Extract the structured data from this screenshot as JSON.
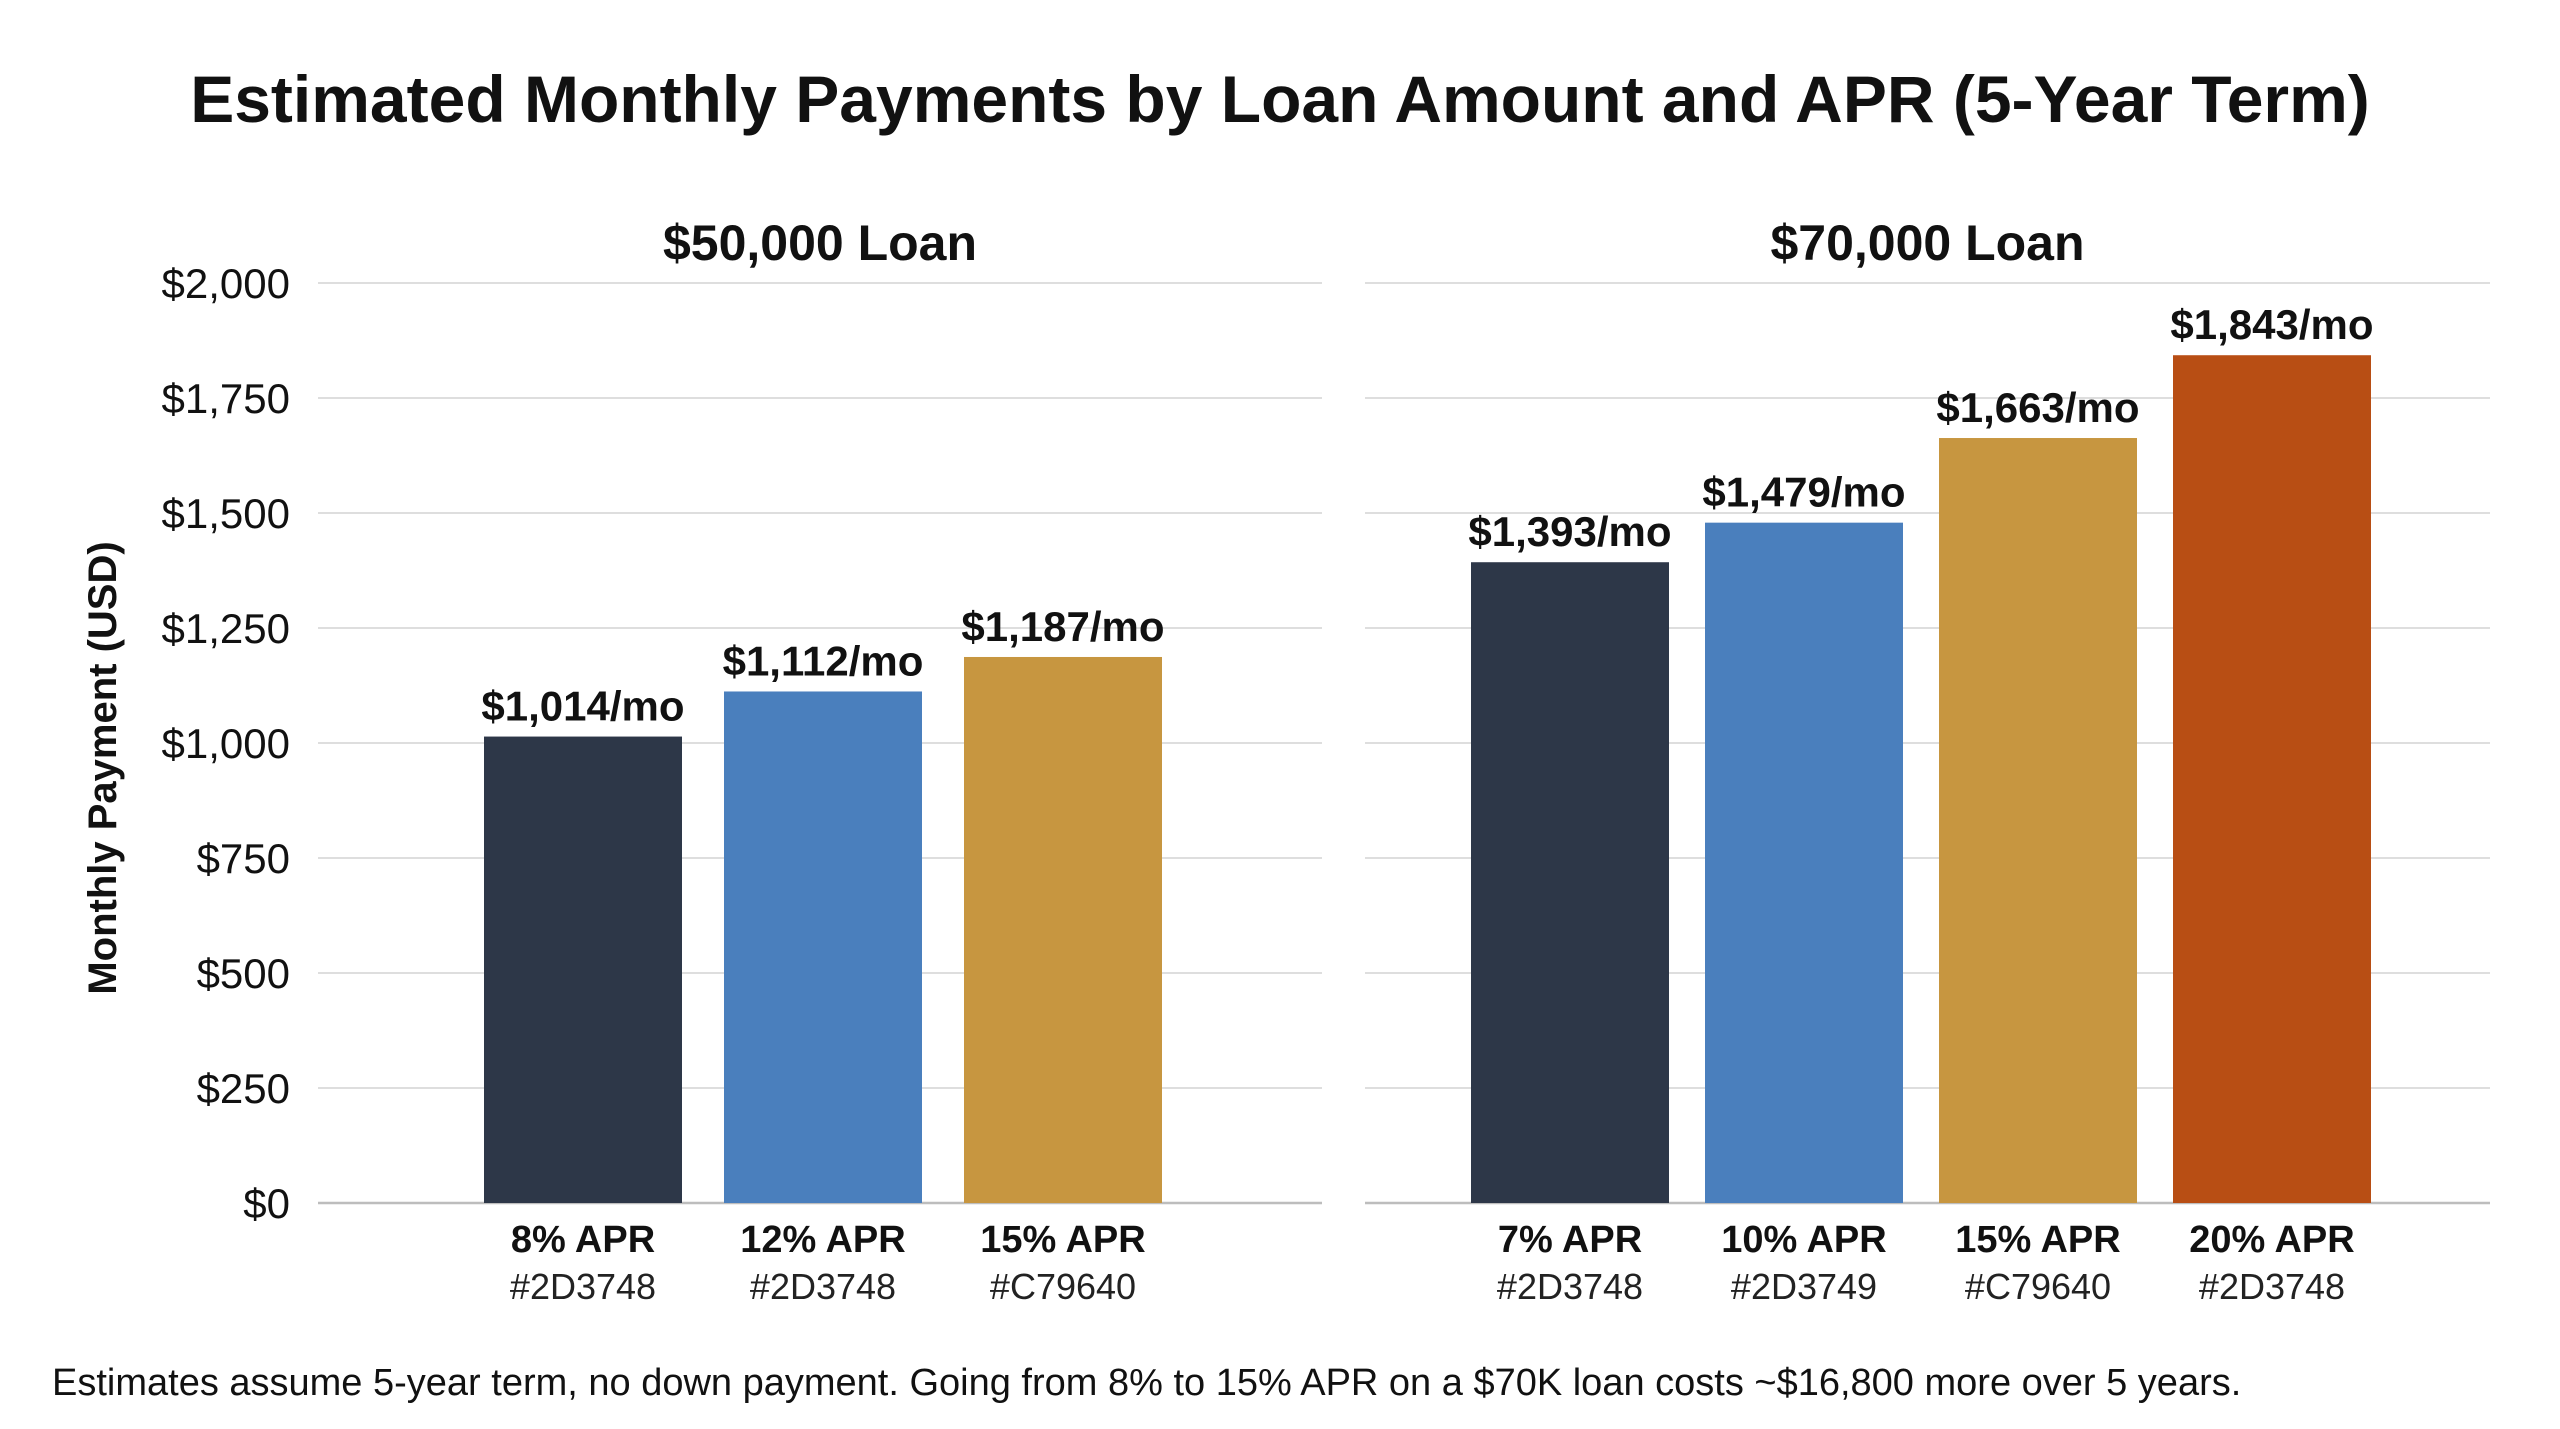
{
  "chart_data": {
    "type": "bar",
    "title": "Estimated Monthly Payments by Loan Amount and APR (5-Year Term)",
    "ylabel": "Monthly Payment (USD)",
    "ylim": [
      0,
      2000
    ],
    "yticks": [
      0,
      250,
      500,
      750,
      1000,
      1250,
      1500,
      1750,
      2000
    ],
    "ytick_labels": [
      "$0",
      "$250",
      "$500",
      "$750",
      "$1,000",
      "$1,250",
      "$1,500",
      "$1,750",
      "$2,000"
    ],
    "grid": true,
    "panels": [
      {
        "title": "$50,000 Loan",
        "categories": [
          "8% APR",
          "12% APR",
          "15% APR"
        ],
        "category_sublabels": [
          "#2D3748",
          "#2D3748",
          "#C79640"
        ],
        "values": [
          1014,
          1112,
          1187
        ],
        "value_labels": [
          "$1,014/mo",
          "$1,112/mo",
          "$1,187/mo"
        ],
        "colors": [
          "#2D3748",
          "#4A7FBD",
          "#C79640"
        ]
      },
      {
        "title": "$70,000 Loan",
        "categories": [
          "7% APR",
          "10% APR",
          "15% APR",
          "20% APR"
        ],
        "category_sublabels": [
          "#2D3748",
          "#2D3749",
          "#C79640",
          "#2D3748"
        ],
        "values": [
          1393,
          1479,
          1663,
          1843
        ],
        "value_labels": [
          "$1,393/mo",
          "$1,479/mo",
          "$1,663/mo",
          "$1,843/mo"
        ],
        "colors": [
          "#2D3748",
          "#4A7FBD",
          "#C79640",
          "#B84E14"
        ]
      }
    ]
  },
  "footnote": "Estimates assume 5-year term, no down payment. Going from 8% to 15% APR on a $70K loan costs ~$16,800 more over 5 years."
}
